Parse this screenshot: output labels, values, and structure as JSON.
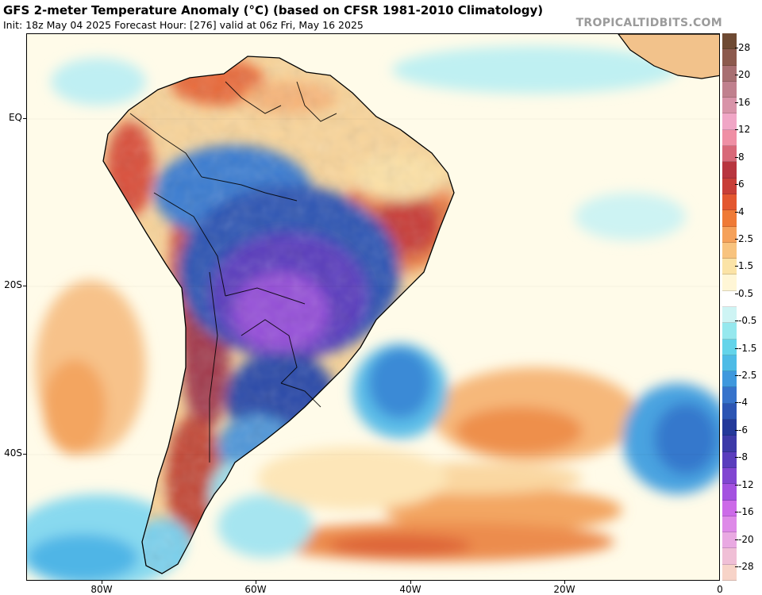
{
  "header": {
    "title": "GFS 2-meter Temperature Anomaly (°C) (based on CFSR 1981-2010 Climatology)",
    "subtitle": "Init: 18z May 04 2025   Forecast Hour: [276]   valid at 06z Fri, May 16 2025",
    "site_credit": "TROPICALTIDBITS.COM"
  },
  "axes": {
    "lat_labels": [
      {
        "label": "EQ",
        "lat": 0
      },
      {
        "label": "20S",
        "lat": -20
      },
      {
        "label": "40S",
        "lat": -40
      }
    ],
    "lon_labels": [
      {
        "label": "80W",
        "lon": -80
      },
      {
        "label": "60W",
        "lon": -60
      },
      {
        "label": "40W",
        "lon": -40
      },
      {
        "label": "20W",
        "lon": -20
      },
      {
        "label": "0",
        "lon": 0
      }
    ]
  },
  "colorbar": {
    "labels": [
      "28",
      "20",
      "16",
      "12",
      "8",
      "6",
      "4",
      "2.5",
      "1.5",
      "0.5",
      "-0.5",
      "-1.5",
      "-2.5",
      "-4",
      "-6",
      "-8",
      "-12",
      "-16",
      "-20",
      "-28"
    ],
    "colors": [
      "#6e4a33",
      "#8c5a4e",
      "#a86f72",
      "#c0808e",
      "#d893a8",
      "#f0a6c6",
      "#ef8fa4",
      "#d86878",
      "#b8353f",
      "#c83e37",
      "#e3572f",
      "#ef7a36",
      "#f5a15a",
      "#f8c37e",
      "#fbe3a6",
      "#fff6d6",
      "#ffffff",
      "#cef4f4",
      "#95e8ee",
      "#63d4ea",
      "#4dbbe6",
      "#3f98dd",
      "#3773cb",
      "#2c55b3",
      "#24399a",
      "#3d3aa8",
      "#5a3dbd",
      "#8146d1",
      "#a452e0",
      "#cc6ae8",
      "#de8ae8",
      "#e9a9e2",
      "#f0bfd6",
      "#f7d3c8"
    ]
  },
  "map": {
    "lon_range": [
      -90,
      0
    ],
    "lat_range": [
      -56,
      13
    ],
    "ocean_color": "#fffbe9",
    "land_outline_color": "#000000"
  }
}
